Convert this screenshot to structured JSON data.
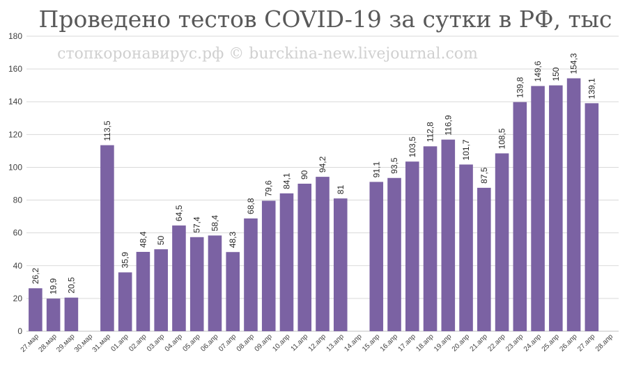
{
  "chart_data": {
    "type": "bar",
    "title": "Проведено тестов COVID-19 за сутки в РФ, тыс",
    "watermark": "стопкоронавирус.рф © burckina-new.livejournal.com",
    "categories": [
      "27.мар",
      "28.мар",
      "29.мар",
      "30.мар",
      "31.мар",
      "01.апр",
      "02.апр",
      "03.апр",
      "04.апр",
      "05.апр",
      "06.апр",
      "07.апр",
      "08.апр",
      "09.апр",
      "10.апр",
      "11.апр",
      "12.апр",
      "13.апр",
      "14.апр",
      "15.апр",
      "16.апр",
      "17.апр",
      "18.апр",
      "19.апр",
      "20.апр",
      "21.апр",
      "22.апр",
      "23.апр",
      "24.апр",
      "25.апр",
      "26.апр",
      "27.апр",
      "28.апр"
    ],
    "values": [
      26.2,
      19.9,
      20.5,
      null,
      113.5,
      35.9,
      48.4,
      50,
      64.5,
      57.4,
      58.4,
      48.3,
      68.8,
      79.6,
      84.1,
      90,
      94.2,
      81,
      null,
      91.1,
      93.5,
      103.5,
      112.8,
      116.9,
      101.7,
      87.5,
      108.5,
      139.8,
      149.6,
      150,
      154.3,
      139.1,
      null
    ],
    "labels": [
      "26,2",
      "19,9",
      "20,5",
      "",
      "113,5",
      "35,9",
      "48,4",
      "50",
      "64,5",
      "57,4",
      "58,4",
      "48,3",
      "68,8",
      "79,6",
      "84,1",
      "90",
      "94,2",
      "81",
      "",
      "91,1",
      "93,5",
      "103,5",
      "112,8",
      "116,9",
      "101,7",
      "87,5",
      "108,5",
      "139,8",
      "149,6",
      "150",
      "154,3",
      "139,1",
      ""
    ],
    "yticks": [
      0,
      20,
      40,
      60,
      80,
      100,
      120,
      140,
      160,
      180
    ],
    "ylim": [
      0,
      180
    ],
    "grid": true,
    "legend": "none",
    "bar_color": "#7b62a3"
  }
}
